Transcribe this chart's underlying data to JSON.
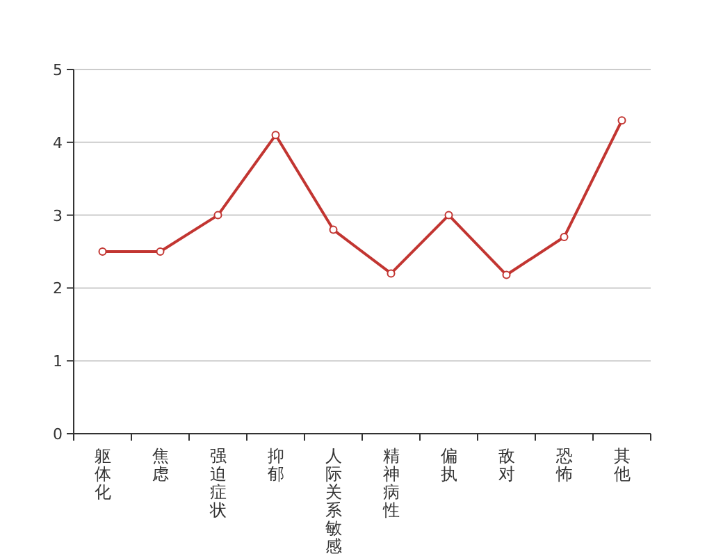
{
  "chart_data": {
    "type": "line",
    "categories": [
      "躯体化",
      "焦虑",
      "强迫症状",
      "抑郁",
      "人际关系敏感",
      "精神病性",
      "偏执",
      "敌对",
      "恐怖",
      "其他"
    ],
    "series": [
      {
        "color": "#c23531",
        "values": [
          2.5,
          2.5,
          3.0,
          4.1,
          2.8,
          2.2,
          3.0,
          2.18,
          2.7,
          4.3
        ]
      }
    ],
    "ylim": [
      0,
      5
    ],
    "yticks": [
      0,
      1,
      2,
      3,
      4,
      5
    ],
    "grid": "y",
    "marker": "circle",
    "line_style": "solid"
  }
}
